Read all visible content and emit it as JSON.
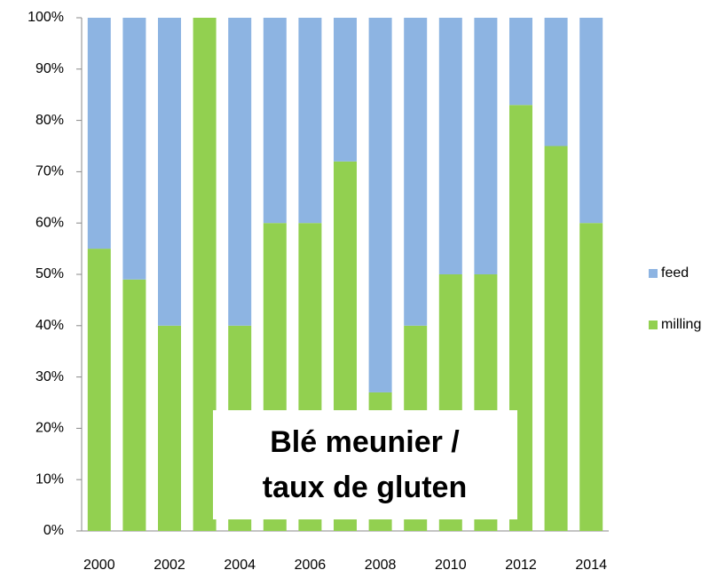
{
  "chart_data": {
    "type": "stacked_bar",
    "categories": [
      "2000",
      null,
      "2002",
      null,
      "2004",
      null,
      "2006",
      null,
      "2008",
      null,
      "2010",
      null,
      "2012",
      null,
      "2014"
    ],
    "series": [
      {
        "name": "feed",
        "color": "#8db4e2",
        "values": [
          45,
          51,
          60,
          0,
          60,
          40,
          40,
          28,
          73,
          60,
          50,
          50,
          17,
          25,
          40
        ]
      },
      {
        "name": "milling",
        "color": "#92d050",
        "values": [
          55,
          49,
          40,
          100,
          40,
          60,
          60,
          72,
          27,
          40,
          50,
          50,
          83,
          75,
          60
        ]
      }
    ],
    "ylim": [
      0,
      100
    ],
    "yticks": [
      {
        "value": 0,
        "label": "0%"
      },
      {
        "value": 10,
        "label": "10%"
      },
      {
        "value": 20,
        "label": "20%"
      },
      {
        "value": 30,
        "label": "30%"
      },
      {
        "value": 40,
        "label": "40%"
      },
      {
        "value": 50,
        "label": "50%"
      },
      {
        "value": 60,
        "label": "60%"
      },
      {
        "value": 70,
        "label": "70%"
      },
      {
        "value": 80,
        "label": "80%"
      },
      {
        "value": 90,
        "label": "90%"
      },
      {
        "value": 100,
        "label": "100%"
      }
    ],
    "legend": "right",
    "annotation": [
      "Blé meunier /",
      "taux de gluten"
    ]
  }
}
